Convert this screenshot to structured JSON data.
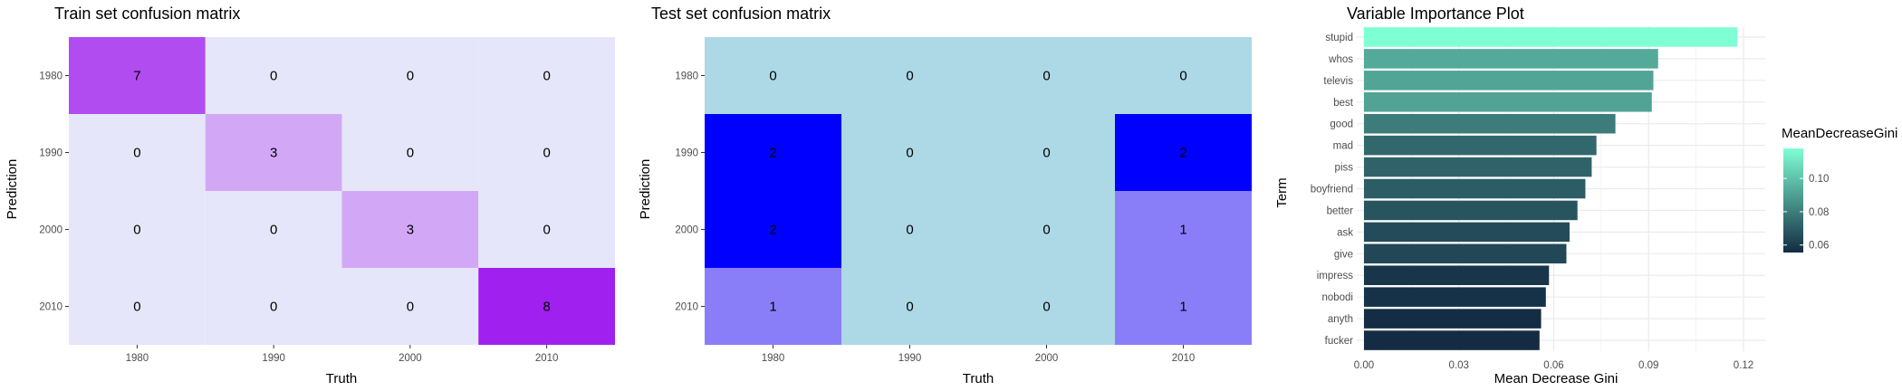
{
  "chart_data": [
    {
      "type": "heatmap",
      "title": "Train set confusion matrix",
      "xlabel": "Truth",
      "ylabel": "Prediction",
      "x_categories": [
        "1980",
        "1990",
        "2000",
        "2010"
      ],
      "y_categories": [
        "1980",
        "1990",
        "2000",
        "2010"
      ],
      "cells": [
        {
          "truth": "1980",
          "prediction": "1980",
          "value": 7,
          "color": "#b04cf0"
        },
        {
          "truth": "1990",
          "prediction": "1980",
          "value": 0,
          "color": "#e6e6fa"
        },
        {
          "truth": "2000",
          "prediction": "1980",
          "value": 0,
          "color": "#e6e6fa"
        },
        {
          "truth": "2010",
          "prediction": "1980",
          "value": 0,
          "color": "#e6e6fa"
        },
        {
          "truth": "1980",
          "prediction": "1990",
          "value": 0,
          "color": "#e6e6fa"
        },
        {
          "truth": "1990",
          "prediction": "1990",
          "value": 3,
          "color": "#d2a8f6"
        },
        {
          "truth": "2000",
          "prediction": "1990",
          "value": 0,
          "color": "#e6e6fa"
        },
        {
          "truth": "2010",
          "prediction": "1990",
          "value": 0,
          "color": "#e6e6fa"
        },
        {
          "truth": "1980",
          "prediction": "2000",
          "value": 0,
          "color": "#e6e6fa"
        },
        {
          "truth": "1990",
          "prediction": "2000",
          "value": 0,
          "color": "#e6e6fa"
        },
        {
          "truth": "2000",
          "prediction": "2000",
          "value": 3,
          "color": "#d2a8f6"
        },
        {
          "truth": "2010",
          "prediction": "2000",
          "value": 0,
          "color": "#e6e6fa"
        },
        {
          "truth": "1980",
          "prediction": "2010",
          "value": 0,
          "color": "#e6e6fa"
        },
        {
          "truth": "1990",
          "prediction": "2010",
          "value": 0,
          "color": "#e6e6fa"
        },
        {
          "truth": "2000",
          "prediction": "2010",
          "value": 0,
          "color": "#e6e6fa"
        },
        {
          "truth": "2010",
          "prediction": "2010",
          "value": 8,
          "color": "#a020f0"
        }
      ]
    },
    {
      "type": "heatmap",
      "title": "Test set confusion matrix",
      "xlabel": "Truth",
      "ylabel": "Prediction",
      "x_categories": [
        "1980",
        "1990",
        "2000",
        "2010"
      ],
      "y_categories": [
        "1980",
        "1990",
        "2000",
        "2010"
      ],
      "cells": [
        {
          "truth": "1980",
          "prediction": "1980",
          "value": 0,
          "color": "#add8e6"
        },
        {
          "truth": "1990",
          "prediction": "1980",
          "value": 0,
          "color": "#add8e6"
        },
        {
          "truth": "2000",
          "prediction": "1980",
          "value": 0,
          "color": "#add8e6"
        },
        {
          "truth": "2010",
          "prediction": "1980",
          "value": 0,
          "color": "#add8e6"
        },
        {
          "truth": "1980",
          "prediction": "1990",
          "value": 2,
          "color": "#0000ff"
        },
        {
          "truth": "1990",
          "prediction": "1990",
          "value": 0,
          "color": "#add8e6"
        },
        {
          "truth": "2000",
          "prediction": "1990",
          "value": 0,
          "color": "#add8e6"
        },
        {
          "truth": "2010",
          "prediction": "1990",
          "value": 2,
          "color": "#0000ff"
        },
        {
          "truth": "1980",
          "prediction": "2000",
          "value": 2,
          "color": "#0000ff"
        },
        {
          "truth": "1990",
          "prediction": "2000",
          "value": 0,
          "color": "#add8e6"
        },
        {
          "truth": "2000",
          "prediction": "2000",
          "value": 0,
          "color": "#add8e6"
        },
        {
          "truth": "2010",
          "prediction": "2000",
          "value": 1,
          "color": "#8a7ef8"
        },
        {
          "truth": "1980",
          "prediction": "2010",
          "value": 1,
          "color": "#8a7ef8"
        },
        {
          "truth": "1990",
          "prediction": "2010",
          "value": 0,
          "color": "#add8e6"
        },
        {
          "truth": "2000",
          "prediction": "2010",
          "value": 0,
          "color": "#add8e6"
        },
        {
          "truth": "2010",
          "prediction": "2010",
          "value": 1,
          "color": "#8a7ef8"
        }
      ]
    },
    {
      "type": "bar",
      "orientation": "horizontal",
      "title": "Variable Importance Plot",
      "xlabel": "Mean Decrease Gini",
      "ylabel": "Term",
      "xlim": [
        0,
        0.12
      ],
      "x_ticks": [
        "0.00",
        "0.03",
        "0.06",
        "0.09",
        "0.12"
      ],
      "grid": true,
      "categories": [
        "stupid",
        "whos",
        "televis",
        "best",
        "good",
        "mad",
        "piss",
        "boyfriend",
        "better",
        "ask",
        "give",
        "impress",
        "nobodi",
        "anyth",
        "fucker"
      ],
      "values": [
        0.118,
        0.093,
        0.0915,
        0.091,
        0.0795,
        0.0735,
        0.072,
        0.07,
        0.0675,
        0.065,
        0.064,
        0.0585,
        0.0575,
        0.056,
        0.0555
      ],
      "legend": {
        "title": "MeanDecreaseGini",
        "position": "right",
        "ticks": [
          "0.06",
          "0.08",
          "0.10"
        ],
        "low_color": "#132b43",
        "high_color": "#7fffd4"
      }
    }
  ]
}
